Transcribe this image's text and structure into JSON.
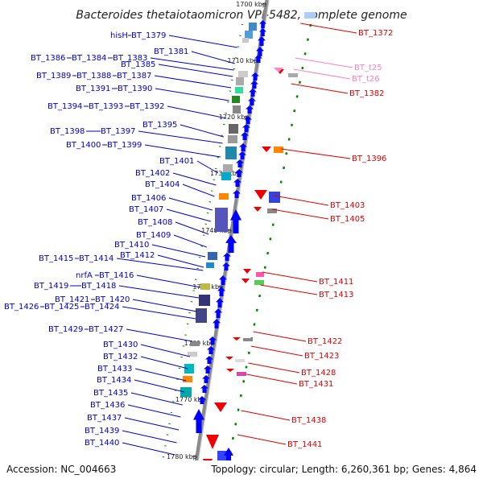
{
  "title": "Bacteroides thetaiotaomicron VPI-5482, complete genome",
  "footer": {
    "accession": "Accession: NC_004663",
    "topology": "Topology: circular; Length: 6,260,361 bp; Genes: 4,864"
  },
  "colors": {
    "left_label": "#0000cc",
    "right_label": "#dd0000",
    "trna_label": "#ff80c0",
    "backbone": "#888888",
    "tick": "#008800"
  },
  "ruler": [
    "1700 kbp",
    "1710 kbp",
    "1720 kbp",
    "1730 kbp",
    "1740 kbp",
    "1750 kbp",
    "1760 kbp",
    "1770 kbp",
    "1780 kbp"
  ],
  "left_rows": [
    [
      "hisH",
      "BT_1379"
    ],
    [
      "BT_1381"
    ],
    [
      "BT_1386",
      "BT_1384",
      "BT_1383"
    ],
    [
      "BT_1385"
    ],
    [
      "BT_1389",
      "BT_1388",
      "BT_1387"
    ],
    [
      "BT_1391",
      "BT_1390"
    ],
    [
      "BT_1394",
      "BT_1393",
      "BT_1392"
    ],
    [
      "BT_1395"
    ],
    [
      "BT_1398",
      "BT_1397"
    ],
    [
      "BT_1400",
      "BT_1399"
    ],
    [
      "BT_1401"
    ],
    [
      "BT_1402"
    ],
    [
      "BT_1404"
    ],
    [
      "BT_1406"
    ],
    [
      "BT_1407"
    ],
    [
      "BT_1408"
    ],
    [
      "BT_1409"
    ],
    [
      "BT_1410"
    ],
    [
      "BT_1412"
    ],
    [
      "BT_1415",
      "BT_1414"
    ],
    [
      "nrfA",
      "BT_1416"
    ],
    [
      "BT_1419",
      "BT_1418"
    ],
    [
      "BT_1421",
      "BT_1420"
    ],
    [
      "BT_1426",
      "BT_1425",
      "BT_1424"
    ],
    [
      "BT_1429",
      "BT_1427"
    ],
    [
      "BT_1430"
    ],
    [
      "BT_1432"
    ],
    [
      "BT_1433"
    ],
    [
      "BT_1434"
    ],
    [
      "BT_1435"
    ],
    [
      "BT_1436"
    ],
    [
      "BT_1437"
    ],
    [
      "BT_1439"
    ],
    [
      "BT_1440"
    ]
  ],
  "right_labels": [
    {
      "text": "BT_1372",
      "kind": "gene"
    },
    {
      "text": "BT_t25",
      "kind": "trna"
    },
    {
      "text": "BT_t26",
      "kind": "trna"
    },
    {
      "text": "BT_1382",
      "kind": "gene"
    },
    {
      "text": "BT_1396",
      "kind": "gene"
    },
    {
      "text": "BT_1403",
      "kind": "gene"
    },
    {
      "text": "BT_1405",
      "kind": "gene"
    },
    {
      "text": "BT_1411",
      "kind": "gene"
    },
    {
      "text": "BT_1413",
      "kind": "gene"
    },
    {
      "text": "BT_1422",
      "kind": "gene"
    },
    {
      "text": "BT_1423",
      "kind": "gene"
    },
    {
      "text": "BT_1428",
      "kind": "gene"
    },
    {
      "text": "BT_1431",
      "kind": "gene"
    },
    {
      "text": "BT_1438",
      "kind": "gene"
    },
    {
      "text": "BT_1441",
      "kind": "gene"
    }
  ]
}
